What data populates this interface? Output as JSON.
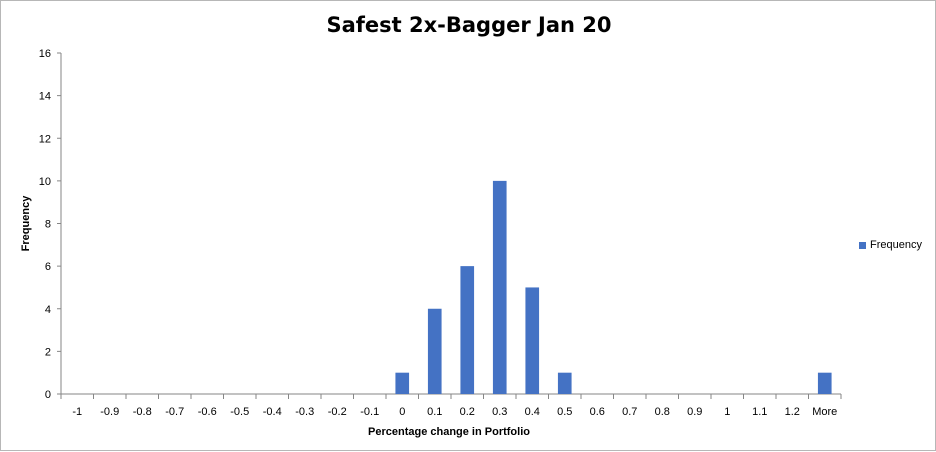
{
  "chart_data": {
    "type": "bar",
    "title": "Safest 2x-Bagger Jan 20",
    "xlabel": "Percentage change  in Portfolio",
    "ylabel": "Frequency",
    "categories": [
      "-1",
      "-0.9",
      "-0.8",
      "-0.7",
      "-0.6",
      "-0.5",
      "-0.4",
      "-0.3",
      "-0.2",
      "-0.1",
      "0",
      "0.1",
      "0.2",
      "0.3",
      "0.4",
      "0.5",
      "0.6",
      "0.7",
      "0.8",
      "0.9",
      "1",
      "1.1",
      "1.2",
      "More"
    ],
    "series": [
      {
        "name": "Frequency",
        "values": [
          0,
          0,
          0,
          0,
          0,
          0,
          0,
          0,
          0,
          0,
          1,
          4,
          6,
          10,
          5,
          1,
          0,
          0,
          0,
          0,
          0,
          0,
          0,
          1
        ]
      }
    ],
    "ylim": [
      0,
      16
    ],
    "yticks": [
      0,
      2,
      4,
      6,
      8,
      10,
      12,
      14,
      16
    ],
    "grid": false,
    "legend_position": "right",
    "bar_color": "#4472C4"
  }
}
